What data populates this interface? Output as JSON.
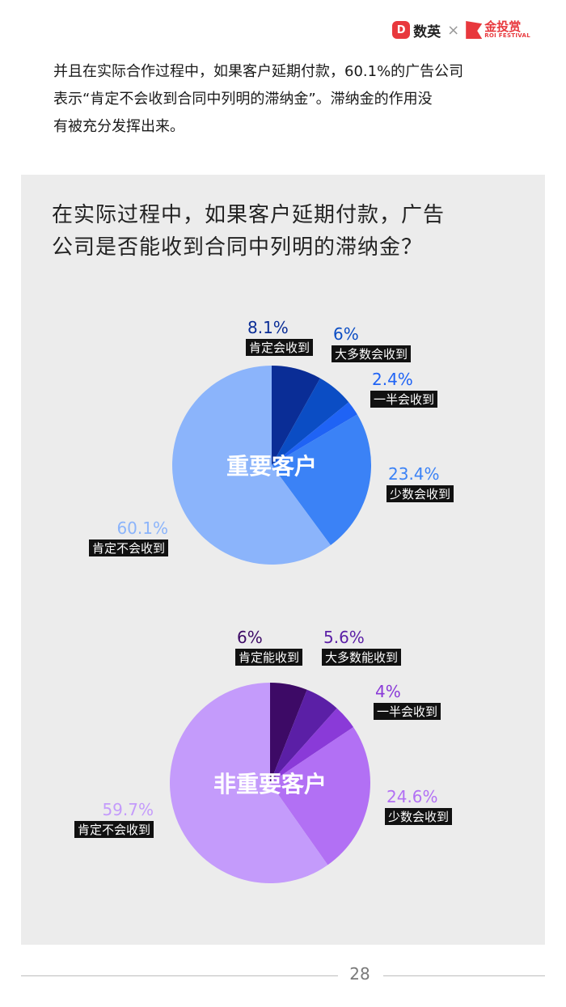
{
  "header": {
    "logo_a_text": "数英",
    "logo_a_badge": "D",
    "separator": "×",
    "logo_b_text": "金投赏",
    "logo_b_sub": "ROI FESTIVAL"
  },
  "intro": {
    "lines": [
      "并且在实际合作过程中，如果客户延期付款，60.1%的广告公司",
      "表示“肯定不会收到合同中列明的滞纳金”。滞纳金的作用没",
      "有被充分发挥出来。"
    ]
  },
  "panel": {
    "title_lines": [
      "在实际过程中，如果客户延期付款，广告",
      "公司是否能收到合同中列明的滞纳金？"
    ]
  },
  "chart_data": [
    {
      "type": "pie",
      "center_label": "重要客户",
      "slices": [
        {
          "label": "肯定会收到",
          "value": 8.1,
          "display": "8.1%",
          "color": "#0a2d96",
          "label_color": "#0a2d96"
        },
        {
          "label": "大多数会收到",
          "value": 6,
          "display": "6%",
          "color": "#0b4dc4",
          "label_color": "#0b4dc4"
        },
        {
          "label": "一半会收到",
          "value": 2.4,
          "display": "2.4%",
          "color": "#1f63f5",
          "label_color": "#1f63f5"
        },
        {
          "label": "少数会收到",
          "value": 23.4,
          "display": "23.4%",
          "color": "#3b82f6",
          "label_color": "#3b82f6"
        },
        {
          "label": "肯定不会收到",
          "value": 60.1,
          "display": "60.1%",
          "color": "#8bb4fb",
          "label_color": "#8bb4fb"
        }
      ]
    },
    {
      "type": "pie",
      "center_label": "非重要客户",
      "slices": [
        {
          "label": "肯定能收到",
          "value": 6,
          "display": "6%",
          "color": "#3d0a66",
          "label_color": "#3d0a66"
        },
        {
          "label": "大多数能收到",
          "value": 5.6,
          "display": "5.6%",
          "color": "#5b1fa6",
          "label_color": "#5b1fa6"
        },
        {
          "label": "一半会收到",
          "value": 4,
          "display": "4%",
          "color": "#8a3ad8",
          "label_color": "#8a3ad8"
        },
        {
          "label": "少数会收到",
          "value": 24.6,
          "display": "24.6%",
          "color": "#b270f4",
          "label_color": "#b270f4"
        },
        {
          "label": "肯定不会收到",
          "value": 59.7,
          "display": "59.7%",
          "color": "#c49bfb",
          "label_color": "#c49bfb"
        }
      ]
    }
  ],
  "footer": {
    "page_number": "28"
  }
}
